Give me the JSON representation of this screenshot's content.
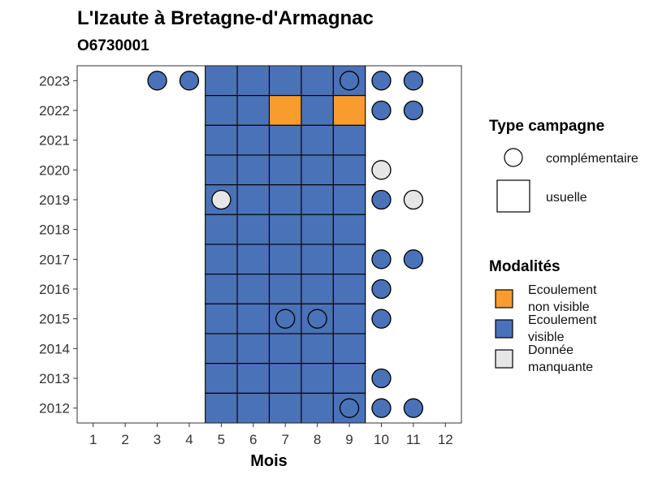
{
  "title": "L'Izaute à Bretagne-d'Armagnac",
  "subtitle": "O6730001",
  "chart_data": {
    "type": "heatmap",
    "xlabel": "Mois",
    "ylabel": "",
    "x_ticks": [
      1,
      2,
      3,
      4,
      5,
      6,
      7,
      8,
      9,
      10,
      11,
      12
    ],
    "y_ticks": [
      2012,
      2013,
      2014,
      2015,
      2016,
      2017,
      2018,
      2019,
      2020,
      2021,
      2022,
      2023
    ],
    "xlim": [
      0.5,
      12.5
    ],
    "ylim": [
      2011.5,
      2023.5
    ],
    "colors": {
      "Ecoulement non visible": "#F89C2D",
      "Ecoulement visible": "#4A72B8",
      "Donnée manquante": "#E6E6E6"
    },
    "usuelle": [
      {
        "year": 2023,
        "months": [
          5,
          6,
          7,
          8,
          9
        ],
        "values": [
          "Ecoulement visible",
          "Ecoulement visible",
          "Ecoulement visible",
          "Ecoulement visible",
          "Ecoulement visible"
        ]
      },
      {
        "year": 2022,
        "months": [
          5,
          6,
          7,
          8,
          9
        ],
        "values": [
          "Ecoulement visible",
          "Ecoulement visible",
          "Ecoulement non visible",
          "Ecoulement visible",
          "Ecoulement non visible"
        ]
      },
      {
        "year": 2021,
        "months": [
          5,
          6,
          7,
          8,
          9
        ],
        "values": [
          "Ecoulement visible",
          "Ecoulement visible",
          "Ecoulement visible",
          "Ecoulement visible",
          "Ecoulement visible"
        ]
      },
      {
        "year": 2020,
        "months": [
          5,
          6,
          7,
          8,
          9
        ],
        "values": [
          "Ecoulement visible",
          "Ecoulement visible",
          "Ecoulement visible",
          "Ecoulement visible",
          "Ecoulement visible"
        ]
      },
      {
        "year": 2019,
        "months": [
          5,
          6,
          7,
          8,
          9
        ],
        "values": [
          "Ecoulement visible",
          "Ecoulement visible",
          "Ecoulement visible",
          "Ecoulement visible",
          "Ecoulement visible"
        ]
      },
      {
        "year": 2018,
        "months": [
          5,
          6,
          7,
          8,
          9
        ],
        "values": [
          "Ecoulement visible",
          "Ecoulement visible",
          "Ecoulement visible",
          "Ecoulement visible",
          "Ecoulement visible"
        ]
      },
      {
        "year": 2017,
        "months": [
          5,
          6,
          7,
          8,
          9
        ],
        "values": [
          "Ecoulement visible",
          "Ecoulement visible",
          "Ecoulement visible",
          "Ecoulement visible",
          "Ecoulement visible"
        ]
      },
      {
        "year": 2016,
        "months": [
          5,
          6,
          7,
          8,
          9
        ],
        "values": [
          "Ecoulement visible",
          "Ecoulement visible",
          "Ecoulement visible",
          "Ecoulement visible",
          "Ecoulement visible"
        ]
      },
      {
        "year": 2015,
        "months": [
          5,
          6,
          7,
          8,
          9
        ],
        "values": [
          "Ecoulement visible",
          "Ecoulement visible",
          "Ecoulement visible",
          "Ecoulement visible",
          "Ecoulement visible"
        ]
      },
      {
        "year": 2014,
        "months": [
          5,
          6,
          7,
          8,
          9
        ],
        "values": [
          "Ecoulement visible",
          "Ecoulement visible",
          "Ecoulement visible",
          "Ecoulement visible",
          "Ecoulement visible"
        ]
      },
      {
        "year": 2013,
        "months": [
          5,
          6,
          7,
          8,
          9
        ],
        "values": [
          "Ecoulement visible",
          "Ecoulement visible",
          "Ecoulement visible",
          "Ecoulement visible",
          "Ecoulement visible"
        ]
      },
      {
        "year": 2012,
        "months": [
          5,
          6,
          7,
          8,
          9
        ],
        "values": [
          "Ecoulement visible",
          "Ecoulement visible",
          "Ecoulement visible",
          "Ecoulement visible",
          "Ecoulement visible"
        ]
      }
    ],
    "complementaire": [
      {
        "year": 2023,
        "month": 3,
        "value": "Ecoulement visible"
      },
      {
        "year": 2023,
        "month": 4,
        "value": "Ecoulement visible"
      },
      {
        "year": 2023,
        "month": 9,
        "value": "Ecoulement visible"
      },
      {
        "year": 2023,
        "month": 10,
        "value": "Ecoulement visible"
      },
      {
        "year": 2023,
        "month": 11,
        "value": "Ecoulement visible"
      },
      {
        "year": 2022,
        "month": 10,
        "value": "Ecoulement visible"
      },
      {
        "year": 2022,
        "month": 11,
        "value": "Ecoulement visible"
      },
      {
        "year": 2020,
        "month": 10,
        "value": "Donnée manquante"
      },
      {
        "year": 2019,
        "month": 5,
        "value": "Donnée manquante"
      },
      {
        "year": 2019,
        "month": 10,
        "value": "Ecoulement visible"
      },
      {
        "year": 2019,
        "month": 11,
        "value": "Donnée manquante"
      },
      {
        "year": 2017,
        "month": 10,
        "value": "Ecoulement visible"
      },
      {
        "year": 2017,
        "month": 11,
        "value": "Ecoulement visible"
      },
      {
        "year": 2016,
        "month": 10,
        "value": "Ecoulement visible"
      },
      {
        "year": 2015,
        "month": 7,
        "value": "Ecoulement visible"
      },
      {
        "year": 2015,
        "month": 8,
        "value": "Ecoulement visible"
      },
      {
        "year": 2015,
        "month": 10,
        "value": "Ecoulement visible"
      },
      {
        "year": 2013,
        "month": 10,
        "value": "Ecoulement visible"
      },
      {
        "year": 2012,
        "month": 9,
        "value": "Ecoulement visible"
      },
      {
        "year": 2012,
        "month": 10,
        "value": "Ecoulement visible"
      },
      {
        "year": 2012,
        "month": 11,
        "value": "Ecoulement visible"
      }
    ]
  },
  "legend": {
    "type_title": "Type campagne",
    "type_items": [
      "complémentaire",
      "usuelle"
    ],
    "mod_title": "Modalités",
    "mod_items": [
      {
        "line1": "Ecoulement",
        "line2": "non visible",
        "key": "Ecoulement non visible"
      },
      {
        "line1": "Ecoulement",
        "line2": "visible",
        "key": "Ecoulement visible"
      },
      {
        "line1": "Donnée",
        "line2": "manquante",
        "key": "Donnée manquante"
      }
    ]
  }
}
